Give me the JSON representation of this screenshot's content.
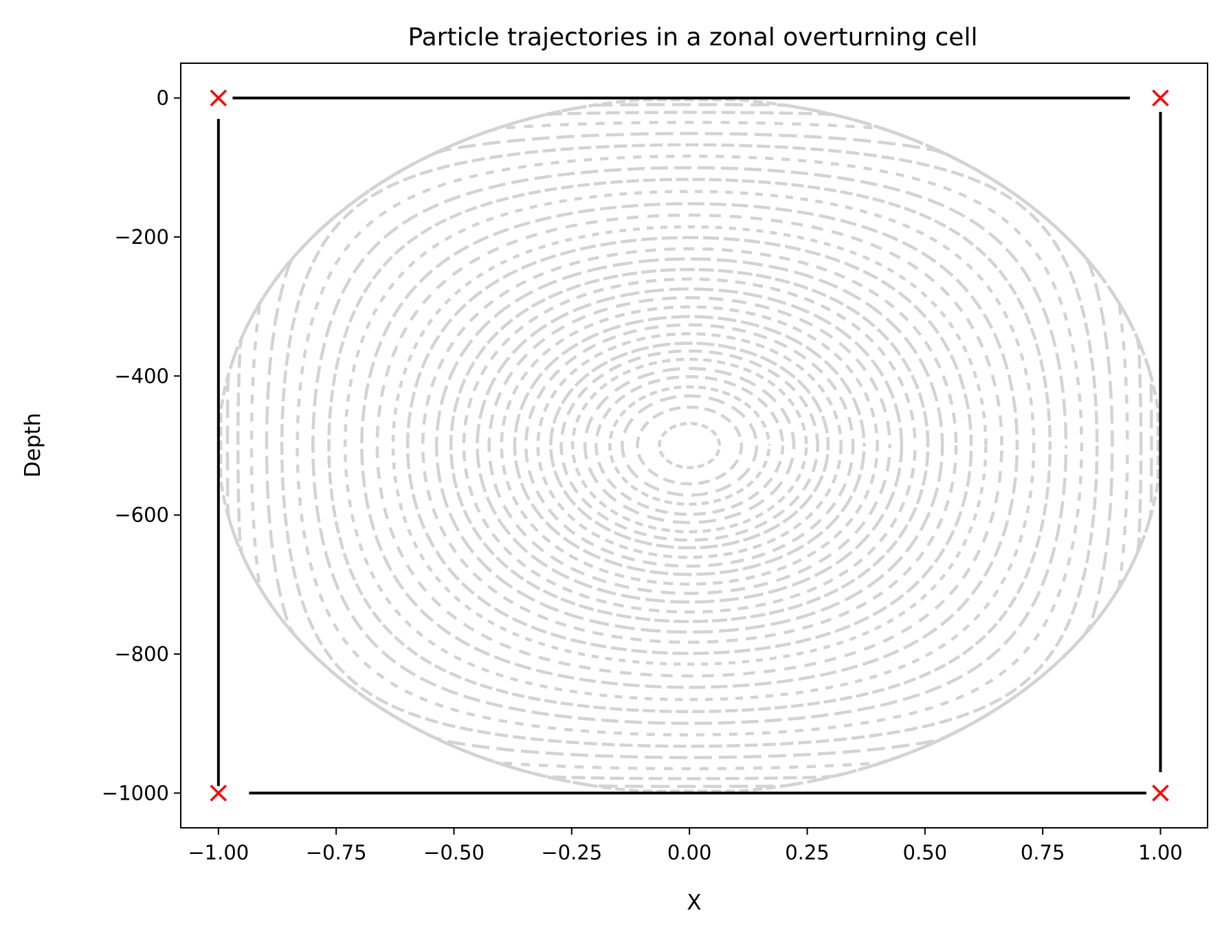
{
  "chart_data": {
    "type": "line",
    "title": "Particle trajectories in a zonal overturning cell",
    "xlabel": "X",
    "ylabel": "Depth",
    "xlim": [
      -1.08,
      1.1
    ],
    "ylim": [
      -1050,
      50
    ],
    "xticks": [
      -1.0,
      -0.75,
      -0.5,
      -0.25,
      0.0,
      0.25,
      0.5,
      0.75,
      1.0
    ],
    "xtick_labels": [
      "−1.00",
      "−0.75",
      "−0.50",
      "−0.25",
      "0.00",
      "0.25",
      "0.50",
      "0.75",
      "1.00"
    ],
    "yticks": [
      0,
      -200,
      -400,
      -600,
      -800,
      -1000
    ],
    "ytick_labels": [
      "0",
      "−200",
      "−400",
      "−600",
      "−800",
      "−1000"
    ],
    "grid": false,
    "legend": null,
    "colors": {
      "trajectory": "#d3d3d3",
      "boundary": "#000000",
      "corner_marker": "#ff0000"
    },
    "boundary_segments": [
      {
        "x": [
          -0.97,
          0.935
        ],
        "y": [
          0,
          0
        ]
      },
      {
        "x": [
          1.0,
          1.0
        ],
        "y": [
          -20,
          -970
        ]
      },
      {
        "x": [
          -0.935,
          0.97
        ],
        "y": [
          -1000,
          -1000
        ]
      },
      {
        "x": [
          -1.0,
          -1.0
        ],
        "y": [
          -30,
          -990
        ]
      }
    ],
    "corner_markers": [
      {
        "x": -1.0,
        "y": 0
      },
      {
        "x": 1.0,
        "y": 0
      },
      {
        "x": -1.0,
        "y": -1000
      },
      {
        "x": 1.0,
        "y": -1000
      }
    ],
    "trajectories": {
      "style": "dashed",
      "center": [
        0.0,
        -500
      ],
      "levels": [
        0.995,
        0.985,
        0.975,
        0.965,
        0.952,
        0.94,
        0.925,
        0.91,
        0.895,
        0.875,
        0.855,
        0.835,
        0.81,
        0.785,
        0.76,
        0.73,
        0.7,
        0.665,
        0.63,
        0.59,
        0.55,
        0.505,
        0.46,
        0.41,
        0.36,
        0.31,
        0.26,
        0.21,
        0.16,
        0.11,
        0.065,
        0.03,
        0.008
      ]
    }
  }
}
